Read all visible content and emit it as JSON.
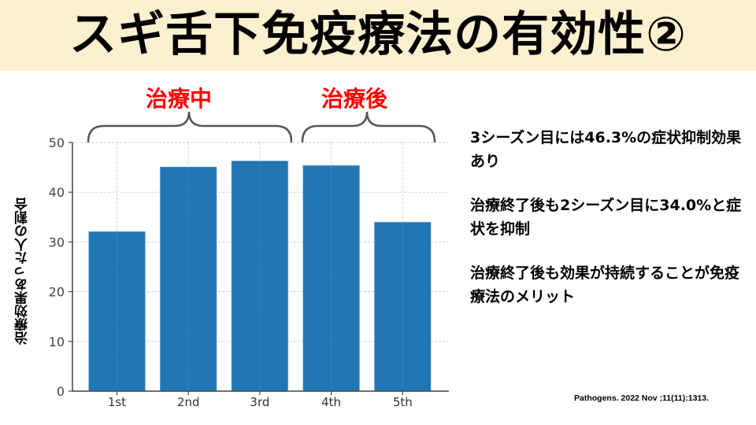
{
  "title": "スギ舌下免疫療法の有効性②",
  "phases": [
    {
      "label": "治療中",
      "color": "#ff0000"
    },
    {
      "label": "治療後",
      "color": "#ff0000"
    }
  ],
  "notes": [
    "3シーズン目には46.3%の症状抑制効果あり",
    "治療終了後も2シーズン目に34.0%と症状を抑制",
    "治療終了後も効果が持続することが免疫療法のメリット"
  ],
  "citation": "Pathogens. 2022 Nov ;11(11):1313.",
  "chart_data": {
    "type": "bar",
    "title": "",
    "xlabel": "",
    "ylabel": "治療効果あった人の割合",
    "categories": [
      "1st",
      "2nd",
      "3rd",
      "4th",
      "5th"
    ],
    "values": [
      32.1,
      45.1,
      46.3,
      45.4,
      34.0
    ],
    "ylim": [
      0,
      50
    ],
    "yticks": [
      0,
      10,
      20,
      30,
      40,
      50
    ],
    "grid": true,
    "bar_color": "#2077b4",
    "annotations": [
      {
        "text": "治療中",
        "span": [
          "1st",
          "3rd"
        ]
      },
      {
        "text": "治療後",
        "span": [
          "4th",
          "5th"
        ]
      }
    ]
  }
}
